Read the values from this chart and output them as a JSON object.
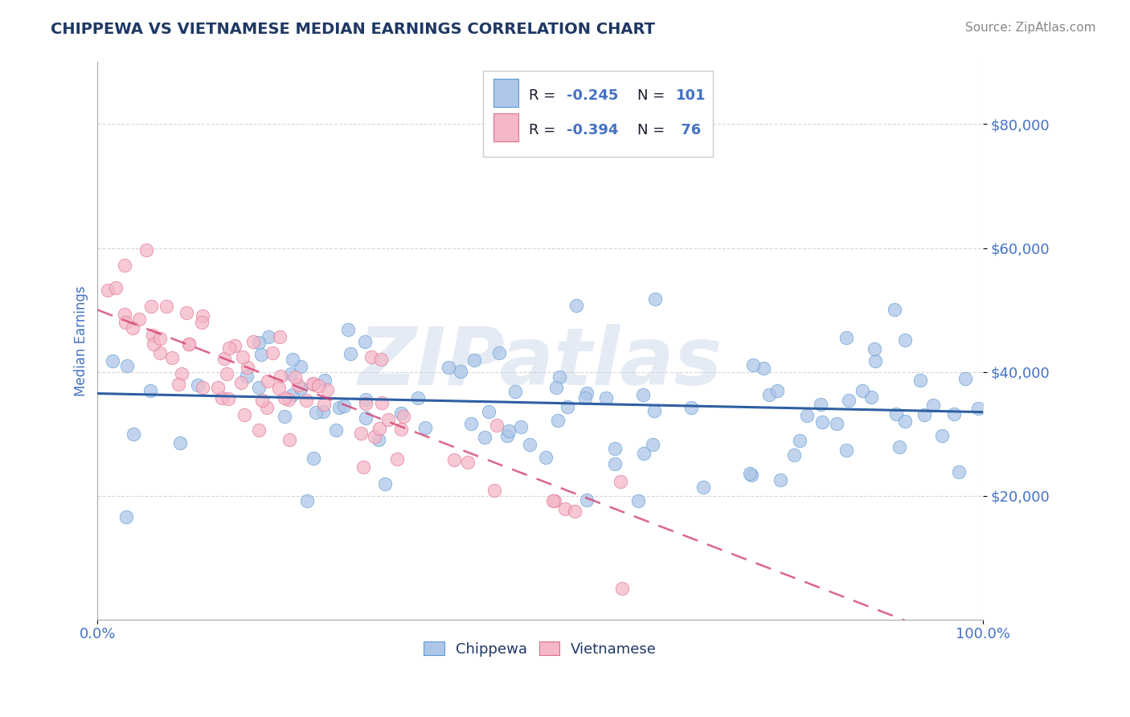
{
  "title": "CHIPPEWA VS VIETNAMESE MEDIAN EARNINGS CORRELATION CHART",
  "source_text": "Source: ZipAtlas.com",
  "ylabel": "Median Earnings",
  "watermark": "ZIPatlas",
  "xlim": [
    0,
    1.0
  ],
  "ylim": [
    0,
    90000
  ],
  "xtick_labels": [
    "0.0%",
    "100.0%"
  ],
  "ytick_values": [
    20000,
    40000,
    60000,
    80000
  ],
  "ytick_labels": [
    "$20,000",
    "$40,000",
    "$60,000",
    "$80,000"
  ],
  "chippewa_color": "#aec6e8",
  "chippewa_edge_color": "#5b9bd5",
  "chippewa_line_color": "#2e5fa3",
  "vietnamese_color": "#f4b8c8",
  "vietnamese_edge_color": "#e07090",
  "vietnamese_line_color": "#d44070",
  "title_color": "#1f3864",
  "tick_label_color": "#4472c4",
  "source_color": "#888888",
  "grid_color": "#cccccc",
  "background_color": "#ffffff",
  "chippewa_intercept": 36500,
  "chippewa_slope": -3000,
  "vietnamese_intercept": 50000,
  "vietnamese_slope": -55000,
  "legend_text": [
    "R = -0.245   N = 101",
    "R = -0.394   N =  76"
  ]
}
